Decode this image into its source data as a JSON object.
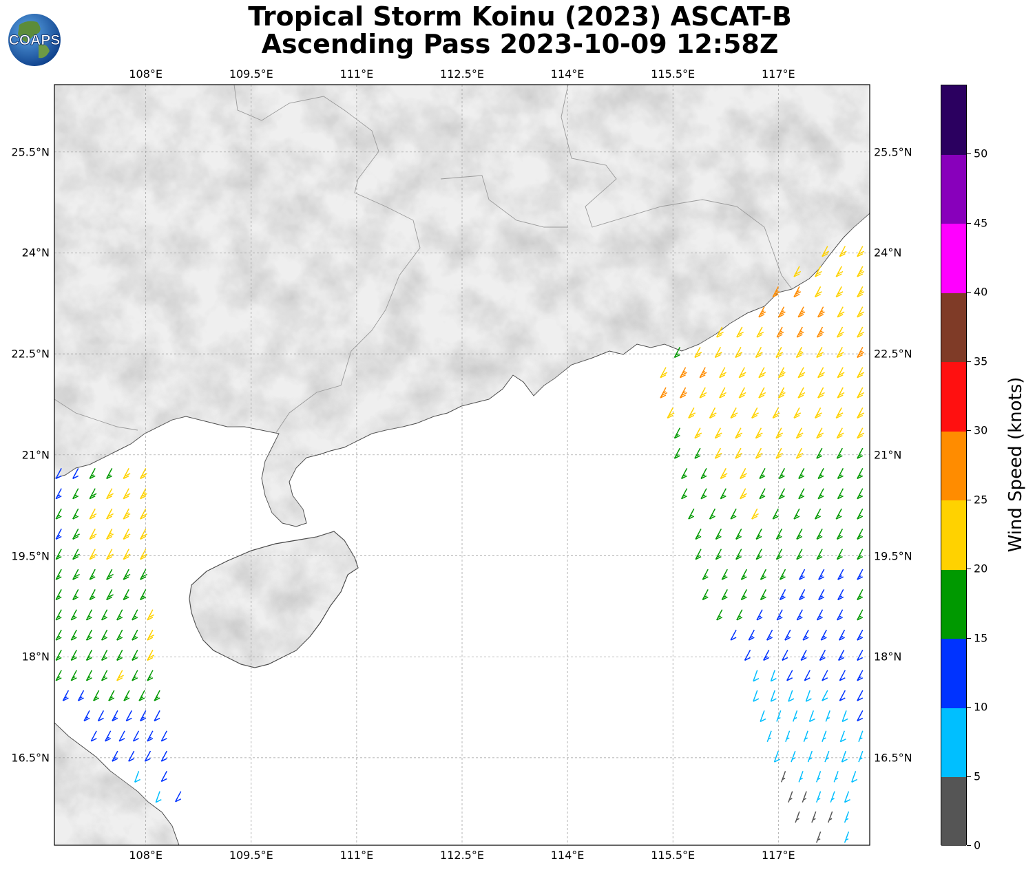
{
  "title": {
    "line1": "Tropical Storm Koinu (2023) ASCAT-B",
    "line2": "Ascending Pass 2023-10-09 12:58Z"
  },
  "logo": {
    "text": "COAPS",
    "icon": "globe-icon"
  },
  "map": {
    "extent": {
      "lon_min": 106.7,
      "lon_max": 118.3,
      "lat_min": 15.2,
      "lat_max": 26.5
    },
    "lon_ticks": [
      "108°E",
      "109.5°E",
      "111°E",
      "112.5°E",
      "114°E",
      "115.5°E",
      "117°E"
    ],
    "lon_values": [
      108,
      109.5,
      111,
      112.5,
      114,
      115.5,
      117
    ],
    "lat_ticks": [
      "25.5°N",
      "24°N",
      "22.5°N",
      "21°N",
      "19.5°N",
      "18°N",
      "16.5°N"
    ],
    "lat_values": [
      25.5,
      24,
      22.5,
      21,
      19.5,
      18,
      16.5
    ],
    "grid": true,
    "land_color": "#eeeeee",
    "ocean_color": "#ffffff"
  },
  "colorbar": {
    "title": "Wind Speed (knots)",
    "ticks": [
      "0",
      "5",
      "10",
      "15",
      "20",
      "25",
      "30",
      "35",
      "40",
      "45",
      "50"
    ],
    "bins": [
      {
        "min": 0,
        "max": 5,
        "color": "#555555"
      },
      {
        "min": 5,
        "max": 10,
        "color": "#00bfff"
      },
      {
        "min": 10,
        "max": 15,
        "color": "#0033ff"
      },
      {
        "min": 15,
        "max": 20,
        "color": "#009900"
      },
      {
        "min": 20,
        "max": 25,
        "color": "#ffd200"
      },
      {
        "min": 25,
        "max": 30,
        "color": "#ff8c00"
      },
      {
        "min": 30,
        "max": 35,
        "color": "#ff1010"
      },
      {
        "min": 35,
        "max": 40,
        "color": "#7f3b27"
      },
      {
        "min": 40,
        "max": 45,
        "color": "#ff00ff"
      },
      {
        "min": 45,
        "max": 50,
        "color": "#8800bb"
      },
      {
        "min": 50,
        "max": 55,
        "color": "#2b0060"
      }
    ]
  },
  "swaths": [
    {
      "name": "west-swath",
      "rows": [
        {
          "lat": 20.8,
          "lon_start": 106.8,
          "lon_end": 108.0,
          "speeds": [
            12,
            12,
            15,
            17,
            22,
            22
          ]
        },
        {
          "lat": 20.5,
          "lon_start": 106.8,
          "lon_end": 108.0,
          "speeds": [
            13,
            16,
            18,
            22,
            22,
            23
          ]
        },
        {
          "lat": 20.2,
          "lon_start": 106.8,
          "lon_end": 108.0,
          "speeds": [
            15,
            17,
            21,
            22,
            23,
            21
          ]
        },
        {
          "lat": 19.9,
          "lon_start": 106.8,
          "lon_end": 108.0,
          "speeds": [
            14,
            18,
            21,
            23,
            22,
            22
          ]
        },
        {
          "lat": 19.6,
          "lon_start": 106.8,
          "lon_end": 108.0,
          "speeds": [
            17,
            18,
            22,
            22,
            21,
            22
          ]
        },
        {
          "lat": 19.3,
          "lon_start": 106.8,
          "lon_end": 108.0,
          "speeds": [
            16,
            18,
            17,
            18,
            18,
            18
          ]
        },
        {
          "lat": 19.0,
          "lon_start": 106.8,
          "lon_end": 108.0,
          "speeds": [
            17,
            16,
            17,
            18,
            17,
            17
          ]
        },
        {
          "lat": 18.7,
          "lon_start": 106.8,
          "lon_end": 108.1,
          "speeds": [
            16,
            17,
            16,
            17,
            16,
            17,
            21
          ]
        },
        {
          "lat": 18.4,
          "lon_start": 106.8,
          "lon_end": 108.1,
          "speeds": [
            17,
            16,
            17,
            16,
            17,
            17,
            22
          ]
        },
        {
          "lat": 18.1,
          "lon_start": 106.8,
          "lon_end": 108.1,
          "speeds": [
            16,
            17,
            16,
            16,
            17,
            17,
            21
          ]
        },
        {
          "lat": 17.8,
          "lon_start": 106.8,
          "lon_end": 108.1,
          "speeds": [
            17,
            16,
            16,
            17,
            21,
            17,
            16
          ]
        },
        {
          "lat": 17.5,
          "lon_start": 106.9,
          "lon_end": 108.2,
          "speeds": [
            13,
            13,
            16,
            16,
            17,
            16,
            17
          ]
        },
        {
          "lat": 17.2,
          "lon_start": 107.2,
          "lon_end": 108.2,
          "speeds": [
            13,
            12,
            13,
            12,
            14,
            12
          ]
        },
        {
          "lat": 16.9,
          "lon_start": 107.3,
          "lon_end": 108.3,
          "speeds": [
            12,
            13,
            12,
            12,
            13,
            11
          ]
        },
        {
          "lat": 16.6,
          "lon_start": 107.6,
          "lon_end": 108.3,
          "speeds": [
            13,
            12,
            12,
            11
          ]
        },
        {
          "lat": 16.3,
          "lon_start": 107.9,
          "lon_end": 108.3,
          "speeds": [
            8,
            11
          ]
        },
        {
          "lat": 16.0,
          "lon_start": 108.2,
          "lon_end": 108.5,
          "speeds": [
            8,
            11
          ]
        }
      ]
    },
    {
      "name": "east-swath",
      "rows": [
        {
          "lat": 24.1,
          "lon_start": 117.7,
          "lon_end": 118.2,
          "speeds": [
            21,
            22,
            22
          ]
        },
        {
          "lat": 23.8,
          "lon_start": 117.3,
          "lon_end": 118.2,
          "speeds": [
            21,
            22,
            22,
            23
          ]
        },
        {
          "lat": 23.5,
          "lon_start": 117.0,
          "lon_end": 118.2,
          "speeds": [
            26,
            27,
            22,
            22,
            23
          ]
        },
        {
          "lat": 23.2,
          "lon_start": 116.8,
          "lon_end": 118.2,
          "speeds": [
            27,
            27,
            27,
            27,
            22,
            22
          ]
        },
        {
          "lat": 22.9,
          "lon_start": 116.2,
          "lon_end": 118.2,
          "speeds": [
            21,
            22,
            22,
            27,
            27,
            27,
            22,
            22
          ]
        },
        {
          "lat": 22.6,
          "lon_start": 115.6,
          "lon_end": 118.2,
          "speeds": [
            17,
            21,
            22,
            22,
            22,
            22,
            23,
            22,
            22,
            26
          ]
        },
        {
          "lat": 22.3,
          "lon_start": 115.4,
          "lon_end": 118.2,
          "speeds": [
            22,
            26,
            27,
            22,
            22,
            22,
            23,
            22,
            22,
            22,
            21
          ]
        },
        {
          "lat": 22.0,
          "lon_start": 115.4,
          "lon_end": 118.2,
          "speeds": [
            27,
            27,
            22,
            22,
            22,
            22,
            23,
            22,
            22,
            21,
            22
          ]
        },
        {
          "lat": 21.7,
          "lon_start": 115.5,
          "lon_end": 118.2,
          "speeds": [
            22,
            22,
            22,
            22,
            22,
            22,
            22,
            22,
            21,
            22
          ]
        },
        {
          "lat": 21.4,
          "lon_start": 115.6,
          "lon_end": 118.2,
          "speeds": [
            17,
            22,
            22,
            22,
            22,
            22,
            22,
            21,
            22,
            22
          ]
        },
        {
          "lat": 21.1,
          "lon_start": 115.6,
          "lon_end": 118.2,
          "speeds": [
            17,
            17,
            22,
            22,
            22,
            22,
            21,
            17,
            17,
            17
          ]
        },
        {
          "lat": 20.8,
          "lon_start": 115.7,
          "lon_end": 118.2,
          "speeds": [
            17,
            17,
            22,
            22,
            17,
            17,
            17,
            17,
            17,
            17
          ]
        },
        {
          "lat": 20.5,
          "lon_start": 115.7,
          "lon_end": 118.2,
          "speeds": [
            17,
            17,
            17,
            22,
            17,
            17,
            17,
            17,
            17,
            17
          ]
        },
        {
          "lat": 20.2,
          "lon_start": 115.8,
          "lon_end": 118.2,
          "speeds": [
            17,
            17,
            17,
            21,
            17,
            17,
            17,
            17,
            17
          ]
        },
        {
          "lat": 19.9,
          "lon_start": 115.9,
          "lon_end": 118.2,
          "speeds": [
            17,
            17,
            17,
            17,
            17,
            17,
            17,
            17,
            17
          ]
        },
        {
          "lat": 19.6,
          "lon_start": 115.9,
          "lon_end": 118.2,
          "speeds": [
            17,
            17,
            17,
            17,
            17,
            17,
            17,
            17,
            17
          ]
        },
        {
          "lat": 19.3,
          "lon_start": 116.0,
          "lon_end": 118.2,
          "speeds": [
            17,
            17,
            17,
            17,
            17,
            13,
            13,
            13,
            13
          ]
        },
        {
          "lat": 19.0,
          "lon_start": 116.0,
          "lon_end": 118.2,
          "speeds": [
            17,
            17,
            17,
            17,
            13,
            13,
            13,
            13,
            17
          ]
        },
        {
          "lat": 18.7,
          "lon_start": 116.2,
          "lon_end": 118.2,
          "speeds": [
            17,
            17,
            13,
            13,
            13,
            13,
            13,
            17
          ]
        },
        {
          "lat": 18.4,
          "lon_start": 116.4,
          "lon_end": 118.2,
          "speeds": [
            12,
            13,
            13,
            13,
            13,
            13,
            13,
            13
          ]
        },
        {
          "lat": 18.1,
          "lon_start": 116.6,
          "lon_end": 118.2,
          "speeds": [
            12,
            13,
            12,
            13,
            13,
            13,
            12
          ]
        },
        {
          "lat": 17.8,
          "lon_start": 116.7,
          "lon_end": 118.2,
          "speeds": [
            8,
            8,
            12,
            12,
            12,
            12,
            13
          ]
        },
        {
          "lat": 17.5,
          "lon_start": 116.7,
          "lon_end": 118.2,
          "speeds": [
            8,
            8,
            8,
            8,
            9,
            11,
            12
          ]
        },
        {
          "lat": 17.2,
          "lon_start": 116.8,
          "lon_end": 118.2,
          "speeds": [
            8,
            7,
            7,
            8,
            7,
            8,
            11
          ]
        },
        {
          "lat": 16.9,
          "lon_start": 116.9,
          "lon_end": 118.2,
          "speeds": [
            7,
            7,
            7,
            7,
            8,
            7
          ]
        },
        {
          "lat": 16.6,
          "lon_start": 117.0,
          "lon_end": 118.2,
          "speeds": [
            8,
            7,
            7,
            7,
            8,
            7
          ]
        },
        {
          "lat": 16.3,
          "lon_start": 117.1,
          "lon_end": 118.1,
          "speeds": [
            4,
            7,
            7,
            7,
            8
          ]
        },
        {
          "lat": 16.0,
          "lon_start": 117.2,
          "lon_end": 118.0,
          "speeds": [
            3,
            4,
            6,
            7,
            8
          ]
        },
        {
          "lat": 15.7,
          "lon_start": 117.3,
          "lon_end": 118.0,
          "speeds": [
            3,
            3,
            4,
            7
          ]
        },
        {
          "lat": 15.4,
          "lon_start": 117.6,
          "lon_end": 118.0,
          "speeds": [
            4,
            7
          ]
        }
      ]
    }
  ]
}
